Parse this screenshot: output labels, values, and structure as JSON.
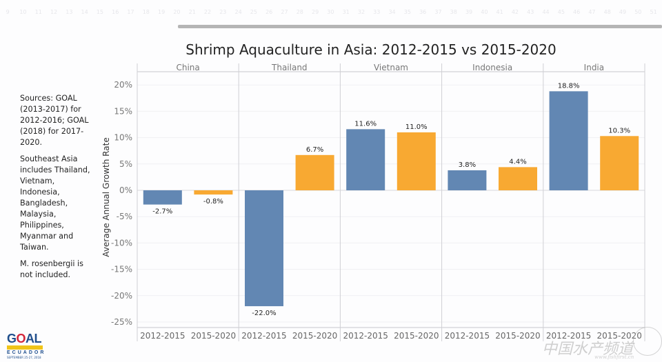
{
  "page": {
    "ruler_numbers": [
      "9",
      "10",
      "11",
      "12",
      "13",
      "14",
      "15",
      "16",
      "17",
      "18",
      "19",
      "20",
      "21",
      "22",
      "23",
      "24",
      "25",
      "26",
      "27",
      "28",
      "29",
      "30",
      "31",
      "32",
      "33",
      "34",
      "35",
      "36",
      "37",
      "38",
      "39",
      "40",
      "41",
      "42",
      "43",
      "44",
      "45",
      "46",
      "47",
      "48",
      "49",
      "50",
      "51"
    ],
    "notes": [
      "Sources: GOAL (2013-2017) for 2012-2016; GOAL (2018) for 2017-2020.",
      "Southeast Asia includes Thailand, Vietnam, Indonesia, Bangladesh, Malaysia, Philippines, Myanmar and Taiwan.",
      "M. rosenbergii is not included."
    ],
    "logo": {
      "word_a": "G",
      "word_o": "O",
      "word_b": "AL",
      "band": "GLOBAL AQUACULTURE",
      "country": "ECUADOR",
      "date": "SEPTEMBER 25-27, 2018"
    },
    "watermark": {
      "text": "中国水产频道",
      "url": "www.fishfirst.cn"
    }
  },
  "colors": {
    "period_2012_2015": "#6287b3",
    "period_2015_2020": "#f8a932"
  },
  "chart_data": {
    "type": "bar",
    "title": "Shrimp Aquaculture in Asia: 2012-2015 vs 2015-2020",
    "xlabel": "",
    "ylabel": "Average Annual Growth Rate",
    "ylim": [
      -26,
      22
    ],
    "yticks": [
      20,
      15,
      10,
      5,
      0,
      -5,
      -10,
      -15,
      -20,
      -25
    ],
    "ytick_labels": [
      "20%",
      "15%",
      "10%",
      "5%",
      "0%",
      "-5%",
      "-10%",
      "-15%",
      "-20%",
      "-25%"
    ],
    "grid": true,
    "legend": "none",
    "panels": [
      "China",
      "Thailand",
      "Vietnam",
      "Indonesia",
      "India"
    ],
    "categories": [
      "2012-2015",
      "2015-2020"
    ],
    "series": [
      {
        "name": "2012-2015",
        "values": [
          -2.7,
          -22.0,
          11.6,
          3.8,
          18.8
        ],
        "labels": [
          "-2.7%",
          "-22.0%",
          "11.6%",
          "3.8%",
          "18.8%"
        ]
      },
      {
        "name": "2015-2020",
        "values": [
          -0.8,
          6.7,
          11.0,
          4.4,
          10.3
        ],
        "labels": [
          "-0.8%",
          "6.7%",
          "11.0%",
          "4.4%",
          "10.3%"
        ]
      }
    ]
  }
}
